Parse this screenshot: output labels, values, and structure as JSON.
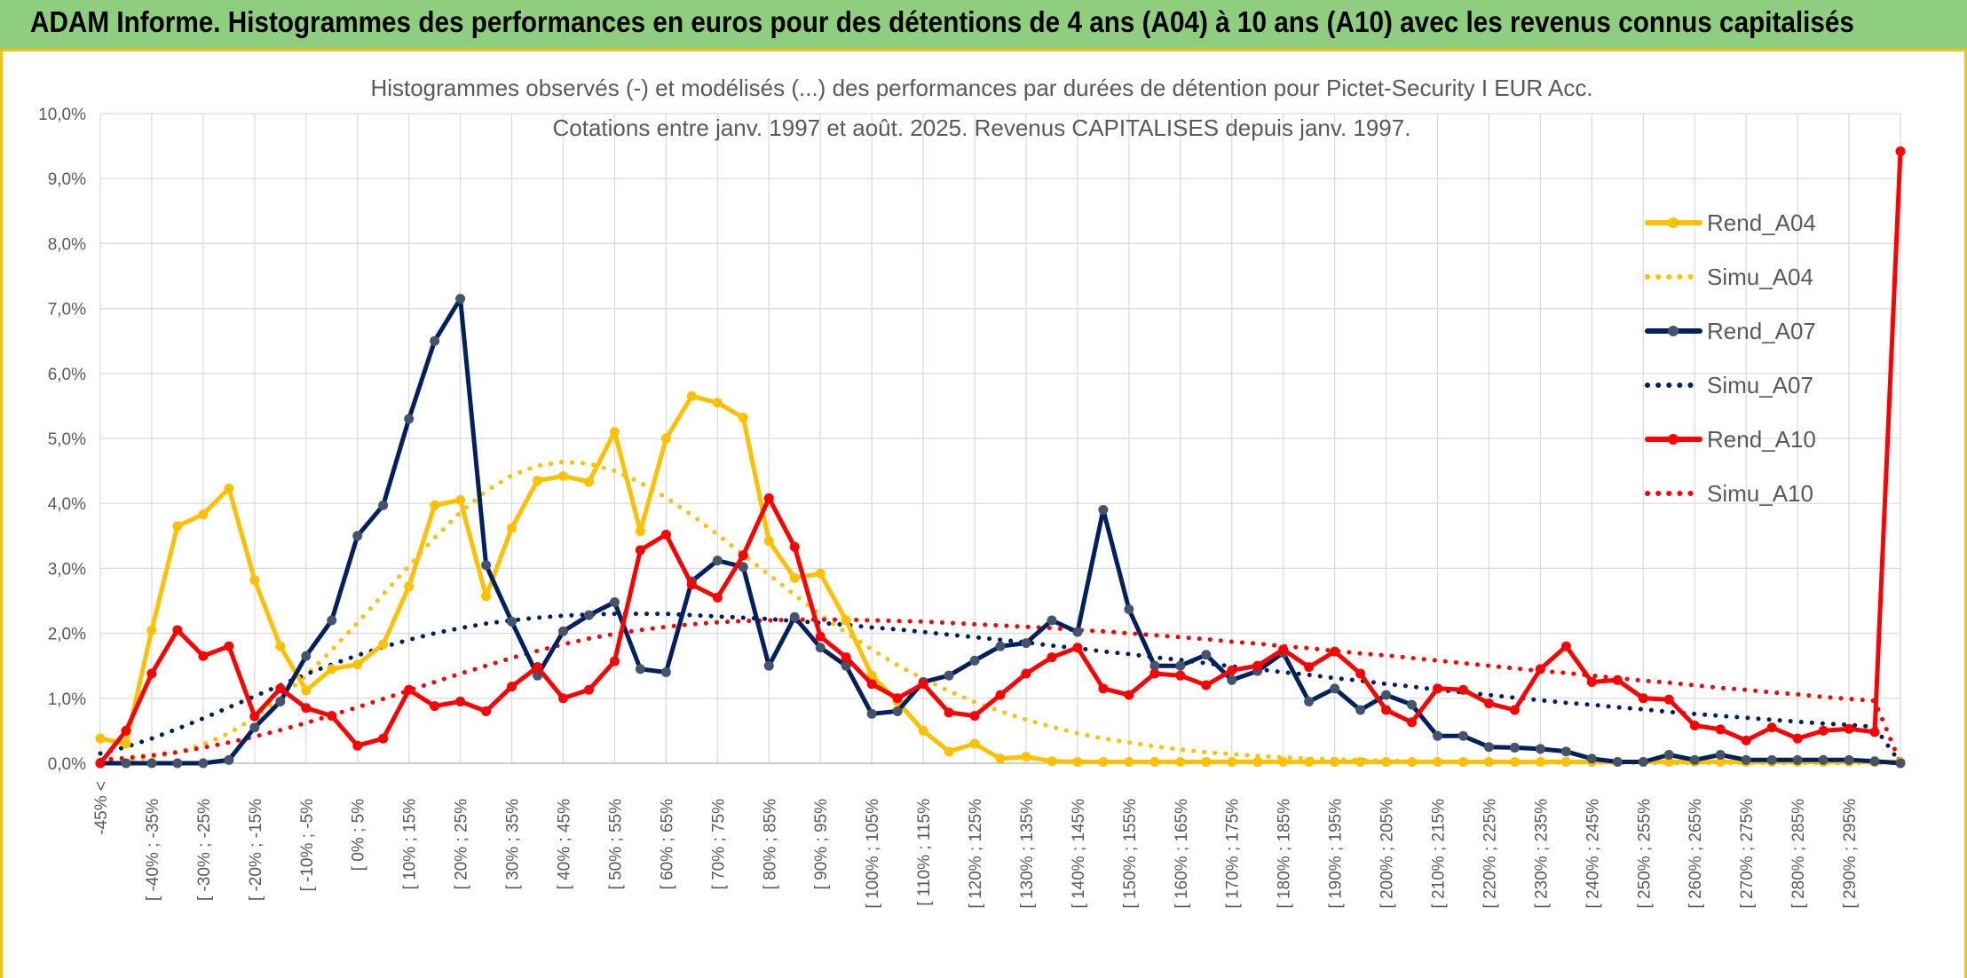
{
  "banner": {
    "title": "ADAM Informe. Histogrammes des performances en euros pour des détentions de 4 ans (A04) à 10 ans (A10) avec les revenus connus capitalisés"
  },
  "chart_data": {
    "type": "line",
    "title": "Histogrammes observés (-) et modélisés (...) des performances par durées de détention pour Pictet-Security I EUR Acc.",
    "subtitle": "Cotations entre janv. 1997 et août. 2025. Revenus CAPITALISES depuis janv. 1997.",
    "xlabel": "",
    "ylabel": "",
    "ylim": [
      0,
      10
    ],
    "yticks": [
      "0,0%",
      "1,0%",
      "2,0%",
      "3,0%",
      "4,0%",
      "5,0%",
      "6,0%",
      "7,0%",
      "8,0%",
      "9,0%",
      "10,0%"
    ],
    "grid": true,
    "legend_position": "right",
    "categories": [
      "-45% <",
      "",
      "[ -40% ; -35%",
      "",
      "[ -30% ; -25%",
      "",
      "[ -20% ; -15%",
      "",
      "[ -10% ; -5%",
      "",
      "[ 0% ; 5%",
      "",
      "[ 10% ; 15%",
      "",
      "[ 20% ; 25%",
      "",
      "[ 30% ; 35%",
      "",
      "[ 40% ; 45%",
      "",
      "[ 50% ; 55%",
      "",
      "[ 60% ; 65%",
      "",
      "[ 70% ; 75%",
      "",
      "[ 80% ; 85%",
      "",
      "[ 90% ; 95%",
      "",
      "[ 100% ; 105%",
      "",
      "[ 110% ; 115%",
      "",
      "[ 120% ; 125%",
      "",
      "[ 130% ; 135%",
      "",
      "[ 140% ; 145%",
      "",
      "[ 150% ; 155%",
      "",
      "[ 160% ; 165%",
      "",
      "[ 170% ; 175%",
      "",
      "[ 180% ; 185%",
      "",
      "[ 190% ; 195%",
      "",
      "[ 200% ; 205%",
      "",
      "[ 210% ; 215%",
      "",
      "[ 220% ; 225%",
      "",
      "[ 230% ; 235%",
      "",
      "[ 240% ; 245%",
      "",
      "[ 250% ; 255%",
      "",
      "[ 260% ; 265%",
      "",
      "[ 270% ; 275%",
      "",
      "[ 280% ; 285%",
      "",
      "[ 290% ; 295%",
      "",
      ""
    ],
    "series": [
      {
        "name": "Rend_A04",
        "style": "solid",
        "color": "#ffc000",
        "markers": true,
        "values": [
          0.38,
          0.3,
          2.05,
          3.65,
          3.83,
          4.23,
          2.82,
          1.8,
          1.12,
          1.45,
          1.52,
          1.83,
          2.72,
          3.97,
          4.05,
          2.57,
          3.62,
          4.35,
          4.42,
          4.33,
          5.1,
          3.57,
          5.0,
          5.65,
          5.55,
          5.32,
          3.42,
          2.85,
          2.92,
          2.2,
          1.35,
          0.95,
          0.5,
          0.18,
          0.3,
          0.07,
          0.1,
          0.03,
          0.02,
          0.02,
          0.02,
          0.02,
          0.02,
          0.02,
          0.02,
          0.02,
          0.02,
          0.02,
          0.02,
          0.02,
          0.02,
          0.02,
          0.02,
          0.02,
          0.02,
          0.02,
          0.02,
          0.02,
          0.02,
          0.02,
          0.02,
          0.02,
          0.02,
          0.02,
          0.02,
          0.02,
          0.02,
          0.02,
          0.02,
          0.02,
          0.02
        ]
      },
      {
        "name": "Simu_A04",
        "style": "dotted",
        "color": "#ffc000",
        "markers": false,
        "values": [
          0.02,
          0.04,
          0.09,
          0.17,
          0.29,
          0.46,
          0.7,
          1.0,
          1.35,
          1.74,
          2.16,
          2.6,
          3.04,
          3.47,
          3.86,
          4.19,
          4.43,
          4.58,
          4.64,
          4.61,
          4.5,
          4.32,
          4.09,
          3.82,
          3.52,
          3.21,
          2.9,
          2.59,
          2.29,
          2.01,
          1.75,
          1.51,
          1.3,
          1.11,
          0.94,
          0.8,
          0.67,
          0.56,
          0.46,
          0.38,
          0.32,
          0.26,
          0.21,
          0.17,
          0.14,
          0.11,
          0.09,
          0.07,
          0.06,
          0.05,
          0.04,
          0.03,
          0.02,
          0.02,
          0.02,
          0.01,
          0.01,
          0.01,
          0.01,
          0.01,
          0.0,
          0.0,
          0.0,
          0.0,
          0.0,
          0.0,
          0.0,
          0.0,
          0.0,
          0.0,
          0.0
        ]
      },
      {
        "name": "Rend_A07",
        "style": "solid",
        "color": "#002060",
        "markers": true,
        "values": [
          0.0,
          0.0,
          0.0,
          0.0,
          0.0,
          0.05,
          0.55,
          0.95,
          1.65,
          2.2,
          3.5,
          3.97,
          5.3,
          6.5,
          7.15,
          3.05,
          2.18,
          1.35,
          2.03,
          2.28,
          2.48,
          1.45,
          1.4,
          2.8,
          3.12,
          3.02,
          1.5,
          2.25,
          1.78,
          1.5,
          0.76,
          0.8,
          1.25,
          1.35,
          1.58,
          1.8,
          1.85,
          2.2,
          2.02,
          3.9,
          2.37,
          1.5,
          1.5,
          1.67,
          1.28,
          1.42,
          1.7,
          0.95,
          1.15,
          0.82,
          1.05,
          0.9,
          0.42,
          0.42,
          0.25,
          0.24,
          0.22,
          0.18,
          0.07,
          0.02,
          0.02,
          0.13,
          0.05,
          0.13,
          0.05,
          0.05,
          0.05,
          0.05,
          0.05,
          0.03,
          0.0
        ]
      },
      {
        "name": "Simu_A07",
        "style": "dotted",
        "color": "#002060",
        "markers": false,
        "values": [
          0.15,
          0.25,
          0.38,
          0.53,
          0.69,
          0.86,
          1.03,
          1.2,
          1.37,
          1.52,
          1.66,
          1.79,
          1.9,
          2.0,
          2.08,
          2.15,
          2.2,
          2.24,
          2.27,
          2.29,
          2.3,
          2.3,
          2.3,
          2.28,
          2.26,
          2.24,
          2.22,
          2.19,
          2.16,
          2.13,
          2.09,
          2.06,
          2.02,
          1.98,
          1.94,
          1.9,
          1.86,
          1.81,
          1.77,
          1.72,
          1.68,
          1.63,
          1.59,
          1.54,
          1.49,
          1.45,
          1.4,
          1.36,
          1.31,
          1.27,
          1.22,
          1.18,
          1.13,
          1.09,
          1.05,
          1.01,
          0.97,
          0.93,
          0.9,
          0.86,
          0.83,
          0.79,
          0.76,
          0.73,
          0.7,
          0.67,
          0.64,
          0.61,
          0.59,
          0.56,
          0.0
        ]
      },
      {
        "name": "Rend_A10",
        "style": "solid",
        "color": "#ff0000",
        "markers": true,
        "values": [
          0.0,
          0.5,
          1.38,
          2.05,
          1.65,
          1.8,
          0.72,
          1.15,
          0.85,
          0.73,
          0.27,
          0.38,
          1.13,
          0.88,
          0.95,
          0.8,
          1.18,
          1.48,
          1.0,
          1.13,
          1.57,
          3.28,
          3.52,
          2.75,
          2.55,
          3.2,
          4.08,
          3.33,
          1.95,
          1.63,
          1.22,
          1.0,
          1.22,
          0.78,
          0.73,
          1.05,
          1.38,
          1.63,
          1.78,
          1.15,
          1.05,
          1.38,
          1.35,
          1.2,
          1.43,
          1.5,
          1.75,
          1.48,
          1.72,
          1.38,
          0.82,
          0.63,
          1.15,
          1.13,
          0.92,
          0.82,
          1.45,
          1.8,
          1.25,
          1.28,
          1.0,
          0.98,
          0.58,
          0.52,
          0.35,
          0.55,
          0.38,
          0.5,
          0.53,
          0.48,
          9.42
        ]
      },
      {
        "name": "Simu_A10",
        "style": "dotted",
        "color": "#ff0000",
        "markers": false,
        "values": [
          0.05,
          0.08,
          0.12,
          0.17,
          0.24,
          0.32,
          0.41,
          0.51,
          0.62,
          0.74,
          0.86,
          0.99,
          1.12,
          1.25,
          1.38,
          1.5,
          1.62,
          1.73,
          1.83,
          1.92,
          1.99,
          2.05,
          2.1,
          2.14,
          2.17,
          2.19,
          2.2,
          2.21,
          2.21,
          2.21,
          2.2,
          2.19,
          2.18,
          2.16,
          2.14,
          2.12,
          2.1,
          2.08,
          2.05,
          2.03,
          2.0,
          1.97,
          1.94,
          1.91,
          1.87,
          1.84,
          1.8,
          1.77,
          1.73,
          1.69,
          1.66,
          1.62,
          1.58,
          1.54,
          1.5,
          1.46,
          1.42,
          1.39,
          1.35,
          1.31,
          1.27,
          1.24,
          1.2,
          1.16,
          1.13,
          1.09,
          1.06,
          1.02,
          0.99,
          0.96,
          0.0
        ]
      }
    ]
  }
}
